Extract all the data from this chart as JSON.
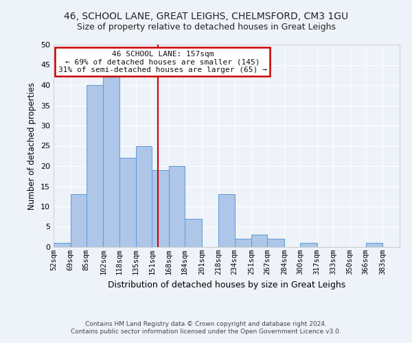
{
  "title": "46, SCHOOL LANE, GREAT LEIGHS, CHELMSFORD, CM3 1GU",
  "subtitle": "Size of property relative to detached houses in Great Leighs",
  "xlabel": "Distribution of detached houses by size in Great Leighs",
  "ylabel": "Number of detached properties",
  "bin_labels": [
    "52sqm",
    "69sqm",
    "85sqm",
    "102sqm",
    "118sqm",
    "135sqm",
    "151sqm",
    "168sqm",
    "184sqm",
    "201sqm",
    "218sqm",
    "234sqm",
    "251sqm",
    "267sqm",
    "284sqm",
    "300sqm",
    "317sqm",
    "333sqm",
    "350sqm",
    "366sqm",
    "383sqm"
  ],
  "bin_edges": [
    52,
    69,
    85,
    102,
    118,
    135,
    151,
    168,
    184,
    201,
    218,
    234,
    251,
    267,
    284,
    300,
    317,
    333,
    350,
    366,
    383,
    400
  ],
  "counts": [
    1,
    13,
    40,
    42,
    22,
    25,
    19,
    20,
    7,
    0,
    13,
    2,
    3,
    2,
    0,
    1,
    0,
    0,
    0,
    1,
    0
  ],
  "bar_color": "#aec6e8",
  "bar_edge_color": "#5b9bd5",
  "property_size": 157,
  "vline_color": "#cc0000",
  "annotation_text_line1": "46 SCHOOL LANE: 157sqm",
  "annotation_text_line2": "← 69% of detached houses are smaller (145)",
  "annotation_text_line3": "31% of semi-detached houses are larger (65) →",
  "annotation_box_color": "#cc0000",
  "ylim": [
    0,
    50
  ],
  "yticks": [
    0,
    5,
    10,
    15,
    20,
    25,
    30,
    35,
    40,
    45,
    50
  ],
  "background_color": "#eef2f9",
  "grid_color": "#ffffff",
  "footer_line1": "Contains HM Land Registry data © Crown copyright and database right 2024.",
  "footer_line2": "Contains public sector information licensed under the Open Government Licence v3.0."
}
